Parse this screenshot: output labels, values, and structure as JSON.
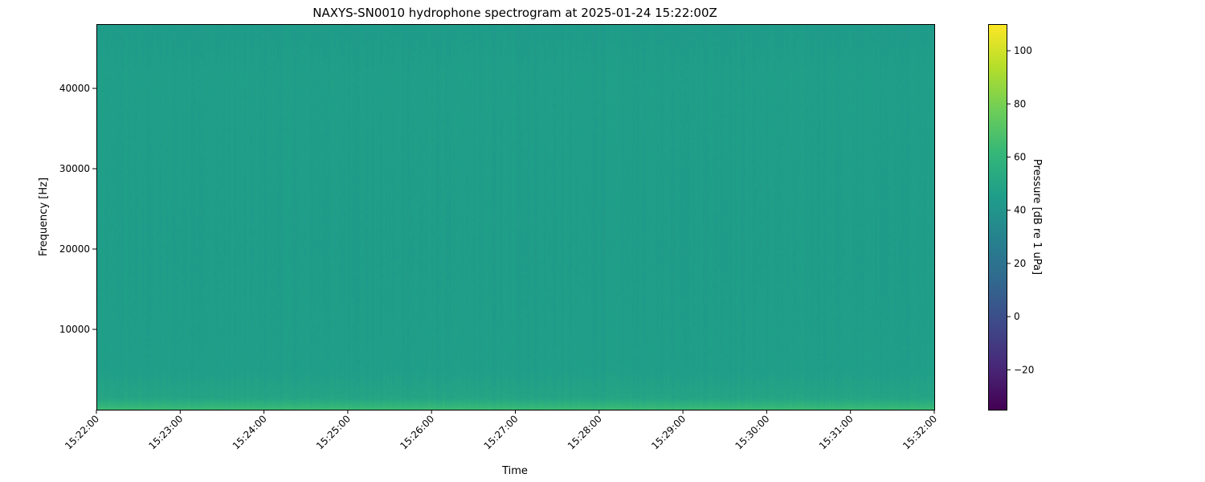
{
  "chart_data": {
    "type": "heatmap",
    "title": "NAXYS-SN0010 hydrophone spectrogram at 2025-01-24 15:22:00Z",
    "xlabel": "Time",
    "ylabel": "Frequency [Hz]",
    "x_range": [
      "15:22:00",
      "15:32:00"
    ],
    "x_ticks": [
      "15:22:00",
      "15:23:00",
      "15:24:00",
      "15:25:00",
      "15:26:00",
      "15:27:00",
      "15:28:00",
      "15:29:00",
      "15:30:00",
      "15:31:00",
      "15:32:00"
    ],
    "ylim": [
      0,
      48000
    ],
    "y_ticks": [
      10000,
      20000,
      30000,
      40000
    ],
    "y_tick_labels": [
      "10000",
      "20000",
      "30000",
      "40000"
    ],
    "colormap": "viridis",
    "colorbar": {
      "label": "Pressure [dB re 1 uPa]",
      "range": [
        -35,
        110
      ],
      "ticks": [
        -20,
        0,
        20,
        40,
        60,
        80,
        100
      ],
      "tick_labels": [
        "−20",
        "0",
        "20",
        "40",
        "60",
        "80",
        "100"
      ]
    },
    "approx_level_profile_db": [
      {
        "freq_hz": 0,
        "level": 66
      },
      {
        "freq_hz": 500,
        "level": 60
      },
      {
        "freq_hz": 1500,
        "level": 50
      },
      {
        "freq_hz": 5000,
        "level": 46
      },
      {
        "freq_hz": 20000,
        "level": 45
      },
      {
        "freq_hz": 42000,
        "level": 46
      },
      {
        "freq_hz": 48000,
        "level": 44
      }
    ]
  }
}
